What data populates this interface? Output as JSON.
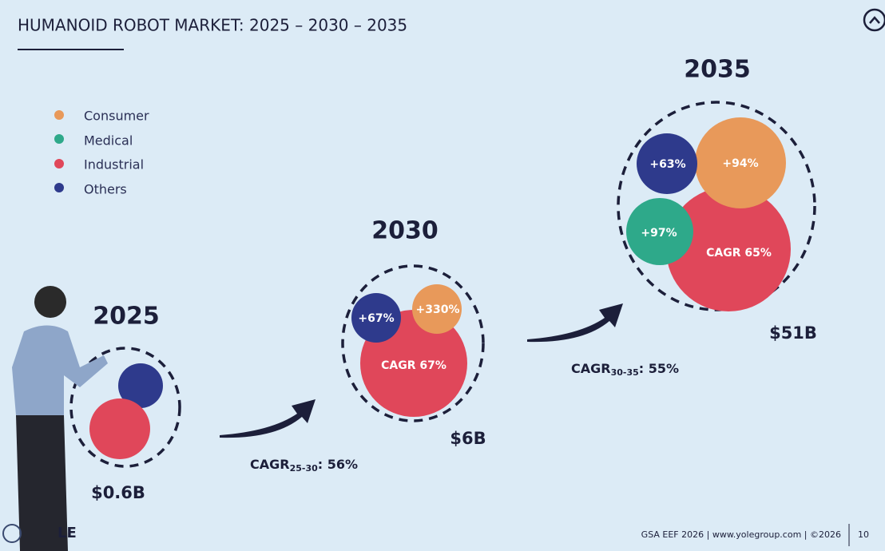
{
  "header": {
    "title": "HUMANOID ROBOT MARKET: 2025 – 2030 – 2035"
  },
  "legend": [
    "Consumer",
    "Medical",
    "Industrial",
    "Others"
  ],
  "years": [
    {
      "year": "2025",
      "total": "$0.6B"
    },
    {
      "year": "2030",
      "total": "$6B",
      "bubbles": [
        "+67%",
        "+330%",
        "CAGR 67%"
      ]
    },
    {
      "year": "2035",
      "total": "$51B",
      "bubbles": [
        "+63%",
        "+94%",
        "+97%",
        "CAGR 65%"
      ]
    }
  ],
  "transitions": [
    {
      "label": "CAGR",
      "period": "25-30",
      "value": ": 56%"
    },
    {
      "label": "CAGR",
      "period": "30-35",
      "value": ": 55%"
    }
  ],
  "footer": {
    "source": "GSA EEF 2026 | www.yolegroup.com | ©2026",
    "page": "10",
    "logo": "LE"
  }
}
